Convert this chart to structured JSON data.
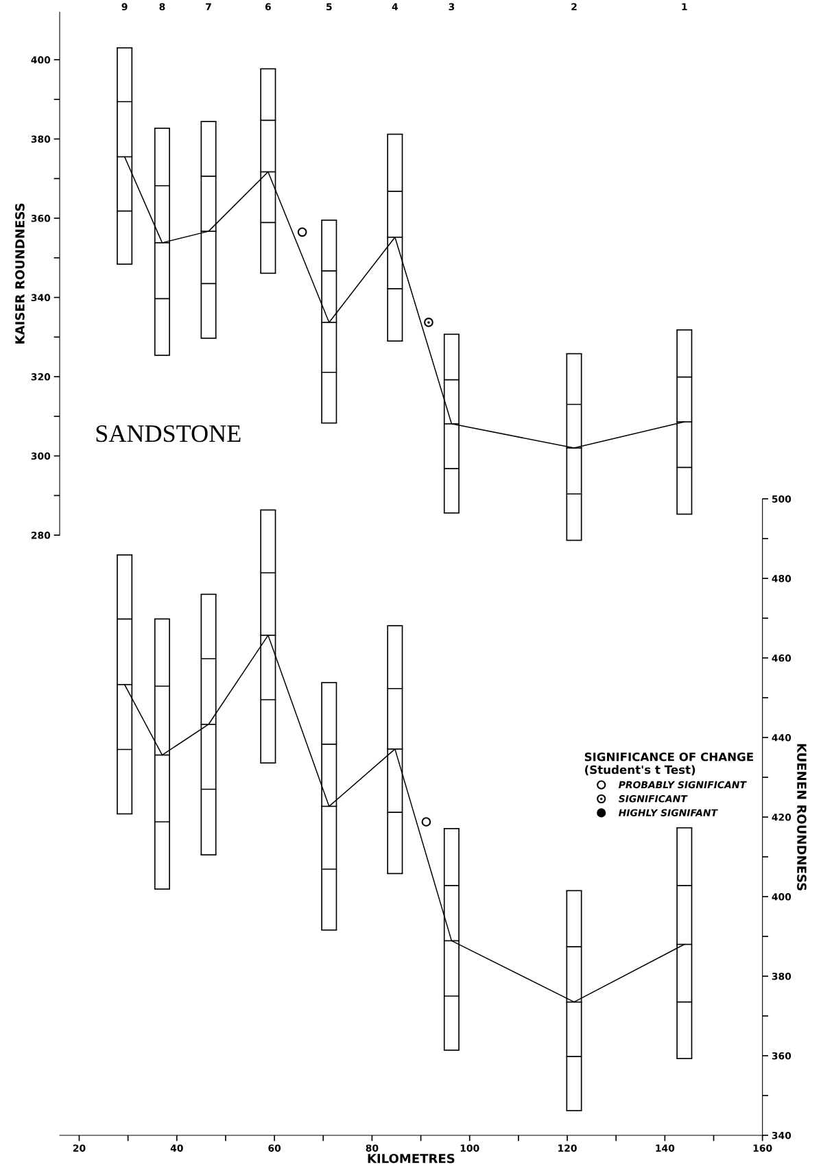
{
  "chart_data": [
    {
      "type": "box",
      "ylabel": "KAISER ROUNDNESS",
      "tick_labels": "y",
      "annotations": [
        "SANDSTONE",
        "9",
        "8",
        "7",
        "6",
        "5",
        "4",
        "3",
        "2",
        "1"
      ],
      "xlim": [
        16,
        160
      ],
      "ylim": [
        280,
        412
      ],
      "yticks": [
        280,
        {
          "value": 290,
          "label": null
        },
        300,
        {
          "value": 310,
          "label": null
        },
        320,
        {
          "value": 330,
          "label": null
        },
        340,
        {
          "value": 350,
          "label": null
        },
        360,
        {
          "value": 370,
          "label": null
        },
        380,
        {
          "value": 390,
          "label": null
        },
        400
      ],
      "series": [
        {
          "color": "#000000",
          "x": [
            29.3,
            37,
            46.5,
            58.7,
            71.2,
            84.7,
            96.3,
            121.4,
            144
          ],
          "boxes": [
            {
              "low": 348.4,
              "q1": 361.8,
              "median": 375.5,
              "q3": 389.4,
              "high": 403
            },
            {
              "low": 325.4,
              "q1": 339.7,
              "median": 353.8,
              "q3": 368.2,
              "high": 382.7
            },
            {
              "low": 329.7,
              "q1": 343.5,
              "median": 356.7,
              "q3": 370.6,
              "high": 384.4
            },
            {
              "low": 346.1,
              "q1": 358.9,
              "median": 371.7,
              "q3": 384.7,
              "high": 397.7
            },
            {
              "low": 308.3,
              "q1": 321.1,
              "median": 333.7,
              "q3": 346.7,
              "high": 359.5
            },
            {
              "low": 329.0,
              "q1": 342.2,
              "median": 355.2,
              "q3": 366.8,
              "high": 381.2
            },
            {
              "low": 285.6,
              "q1": 296.8,
              "median": 308.1,
              "q3": 319.2,
              "high": 330.7
            },
            {
              "low": 278.7,
              "q1": 290.4,
              "median": 302,
              "q3": 313,
              "high": 325.8
            },
            {
              "low": 285.3,
              "q1": 297.1,
              "median": 308.6,
              "q3": 319.9,
              "high": 331.8
            }
          ]
        },
        {
          "type": "line",
          "color": "#000000",
          "x": [
            29.3,
            37,
            46.5,
            58.7,
            71.2,
            84.7,
            96.3,
            121.4,
            144
          ],
          "values": [
            375.5,
            353.8,
            356.7,
            371.7,
            333.7,
            355.2,
            308.1,
            302,
            308.6
          ]
        },
        {
          "type": "scatter",
          "color": "#000000",
          "marker": "circle",
          "x": [
            65.7
          ],
          "values": [
            356.5
          ]
        },
        {
          "type": "scatter",
          "color": "#000000",
          "marker": "circle",
          "x": [
            91.6
          ],
          "values": [
            333.7
          ]
        }
      ]
    },
    {
      "type": "box",
      "xlabel": "KILOMETRES",
      "y2label": "KUENEN ROUNDNESS",
      "legend": "right",
      "legend_title": "SIGNIFICANCE OF CHANGE\n(Student's t Test)",
      "xlim": [
        16,
        160
      ],
      "xticks": [
        20,
        {
          "value": 30,
          "label": null
        },
        40,
        {
          "value": 50,
          "label": null
        },
        60,
        {
          "value": 70,
          "label": null
        },
        80,
        {
          "value": 90,
          "label": null
        },
        100,
        {
          "value": 110,
          "label": null
        },
        120,
        {
          "value": 130,
          "label": null
        },
        140,
        {
          "value": 150,
          "label": null
        },
        160
      ],
      "y2lim": [
        340,
        500
      ],
      "y2ticks": [
        340,
        {
          "value": 350,
          "label": null
        },
        360,
        {
          "value": 370,
          "label": null
        },
        380,
        {
          "value": 390,
          "label": null
        },
        400,
        {
          "value": 410,
          "label": null
        },
        420,
        {
          "value": 430,
          "label": null
        },
        440,
        {
          "value": 450,
          "label": null
        },
        460,
        {
          "value": 470,
          "label": null
        },
        480,
        {
          "value": 490,
          "label": null
        },
        500
      ],
      "series": [
        {
          "axis": "y2",
          "color": "#000000",
          "x": [
            29.3,
            37,
            46.5,
            58.7,
            71.2,
            84.7,
            96.3,
            121.4,
            144
          ],
          "boxes": [
            {
              "low": 420.8,
              "q1": 437.0,
              "median": 453.3,
              "q3": 469.8,
              "high": 485.9
            },
            {
              "low": 401.9,
              "q1": 418.8,
              "median": 435.6,
              "q3": 452.9,
              "high": 469.8
            },
            {
              "low": 410.5,
              "q1": 427.0,
              "median": 443.3,
              "q3": 459.8,
              "high": 476.0
            },
            {
              "low": 433.6,
              "q1": 449.5,
              "median": 465.7,
              "q3": 481.4,
              "high": 497.2
            },
            {
              "low": 391.6,
              "q1": 406.9,
              "median": 422.7,
              "q3": 438.3,
              "high": 453.8
            },
            {
              "low": 405.8,
              "q1": 421.2,
              "median": 437.1,
              "q3": 452.3,
              "high": 468.1
            },
            {
              "low": 361.4,
              "q1": 375.0,
              "median": 388.9,
              "q3": 402.8,
              "high": 417.1
            },
            {
              "low": 346.2,
              "q1": 359.8,
              "median": 373.5,
              "q3": 387.4,
              "high": 401.5
            },
            {
              "low": 359.3,
              "q1": 373.5,
              "median": 388.0,
              "q3": 402.8,
              "high": 417.3
            }
          ]
        },
        {
          "type": "line",
          "axis": "y2",
          "color": "#000000",
          "x": [
            29.3,
            37,
            46.5,
            58.7,
            71.2,
            84.7,
            96.3,
            121.4,
            144
          ],
          "values": [
            453.3,
            435.6,
            443.3,
            465.7,
            422.7,
            437.1,
            388.9,
            373.5,
            388.0
          ]
        },
        {
          "type": "scatter",
          "axis": "y2",
          "name": "PROBABLY SIGNIFICANT",
          "color": "#000000",
          "marker": "circle",
          "x": [
            91.1
          ],
          "values": [
            418.8
          ]
        },
        {
          "type": "scatter",
          "axis": "y2",
          "name": "SIGNIFICANT",
          "color": "#000000",
          "marker": "circle"
        },
        {
          "type": "scatter",
          "axis": "y2",
          "name": "HIGHLY SIGNIFANT",
          "color": "#000000",
          "marker": "circle"
        }
      ]
    }
  ]
}
